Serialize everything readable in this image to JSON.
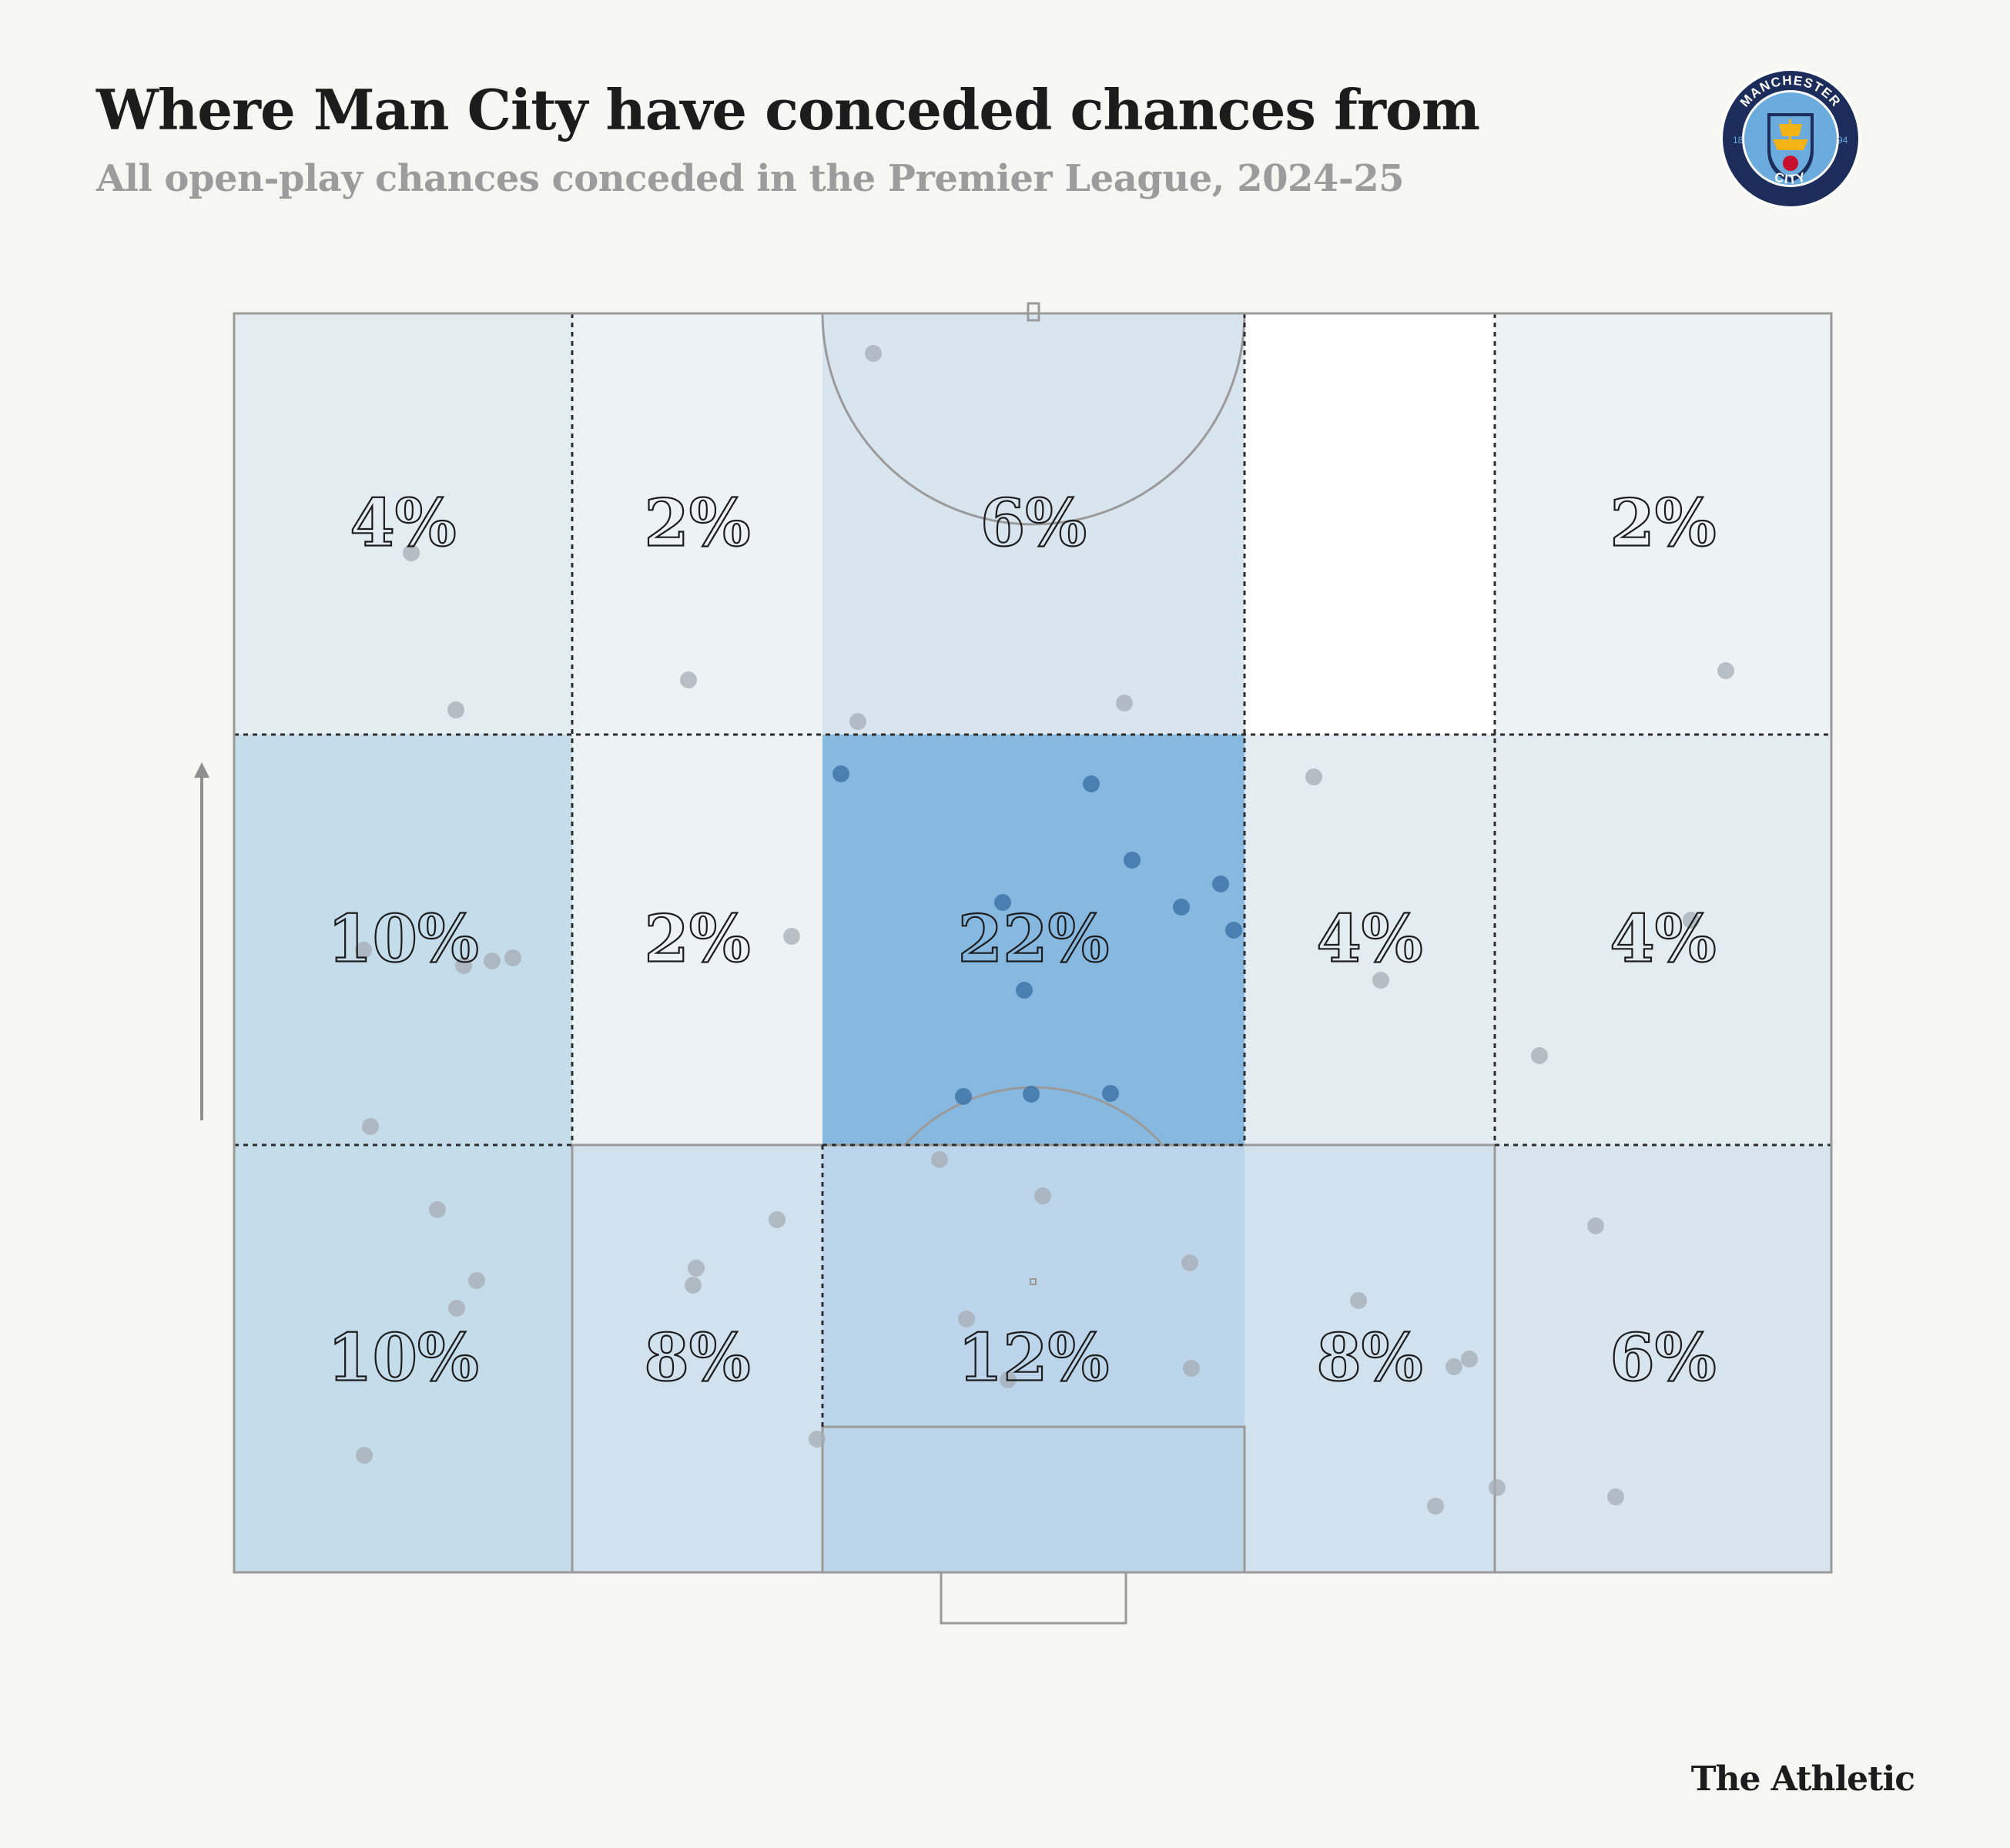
{
  "header": {
    "title": "Where Man City have conceded chances from",
    "subtitle": "All open-play chances conceded in the Premier League, 2024-25"
  },
  "crest": {
    "top_text": "MANCHESTER",
    "bottom_text": "CITY",
    "left_year": "18",
    "right_year": "94",
    "colors": {
      "blue": "#1c2c5b",
      "sky": "#6cabdd",
      "gold": "#f2b316",
      "red": "#c8102e"
    }
  },
  "brand": "The Athletic",
  "colors": {
    "background": "#f6f7f3",
    "heat_scale": [
      "#ffffff",
      "#86b8e0"
    ],
    "dot_light": "#a4acb4",
    "dot_dark": "#3f75a8"
  },
  "chart_data": {
    "type": "heatmap",
    "title": "Where Man City have conceded chances from",
    "subtitle": "All open-play chances conceded in the Premier League, 2024-25",
    "attack_direction": "up",
    "zones": [
      {
        "row": 0,
        "col": 0,
        "value": 4,
        "label": "4%"
      },
      {
        "row": 0,
        "col": 1,
        "value": 2,
        "label": "2%"
      },
      {
        "row": 0,
        "col": 2,
        "value": 6,
        "label": "6%"
      },
      {
        "row": 0,
        "col": 3,
        "value": 0,
        "label": ""
      },
      {
        "row": 0,
        "col": 4,
        "value": 2,
        "label": "2%"
      },
      {
        "row": 1,
        "col": 0,
        "value": 10,
        "label": "10%"
      },
      {
        "row": 1,
        "col": 1,
        "value": 2,
        "label": "2%"
      },
      {
        "row": 1,
        "col": 2,
        "value": 22,
        "label": "22%"
      },
      {
        "row": 1,
        "col": 3,
        "value": 4,
        "label": "4%"
      },
      {
        "row": 1,
        "col": 4,
        "value": 4,
        "label": "4%"
      },
      {
        "row": 2,
        "col": 0,
        "value": 10,
        "label": "10%"
      },
      {
        "row": 2,
        "col": 1,
        "value": 8,
        "label": "8%"
      },
      {
        "row": 2,
        "col": 2,
        "value": 12,
        "label": "12%"
      },
      {
        "row": 2,
        "col": 3,
        "value": 8,
        "label": "8%"
      },
      {
        "row": 2,
        "col": 4,
        "value": 6,
        "label": "6%"
      }
    ],
    "chances": [
      [
        1134,
        459,
        0
      ],
      [
        534,
        718,
        0
      ],
      [
        592,
        922,
        0
      ],
      [
        894,
        883,
        0
      ],
      [
        1114,
        937,
        0
      ],
      [
        1460,
        913,
        0
      ],
      [
        2241,
        871,
        0
      ],
      [
        1092,
        1005,
        1
      ],
      [
        1417,
        1018,
        1
      ],
      [
        1470,
        1117,
        1
      ],
      [
        1302,
        1172,
        1
      ],
      [
        1534,
        1178,
        1
      ],
      [
        1585,
        1148,
        1
      ],
      [
        1602,
        1208,
        1
      ],
      [
        1330,
        1286,
        1
      ],
      [
        1251,
        1424,
        1
      ],
      [
        1339,
        1421,
        1
      ],
      [
        1442,
        1420,
        1
      ],
      [
        1706,
        1009,
        0
      ],
      [
        2196,
        1195,
        0
      ],
      [
        1793,
        1273,
        0
      ],
      [
        1999,
        1371,
        0
      ],
      [
        1028,
        1216,
        0
      ],
      [
        472,
        1234,
        0
      ],
      [
        602,
        1254,
        0
      ],
      [
        639,
        1248,
        0
      ],
      [
        666,
        1244,
        0
      ],
      [
        481,
        1463,
        0
      ],
      [
        568,
        1571,
        0
      ],
      [
        619,
        1663,
        0
      ],
      [
        593,
        1699,
        0
      ],
      [
        473,
        1890,
        0
      ],
      [
        1220,
        1506,
        0
      ],
      [
        1354,
        1553,
        0
      ],
      [
        1009,
        1584,
        0
      ],
      [
        904,
        1647,
        0
      ],
      [
        900,
        1669,
        0
      ],
      [
        1255,
        1713,
        0
      ],
      [
        1309,
        1792,
        0
      ],
      [
        1545,
        1640,
        0
      ],
      [
        1547,
        1777,
        0
      ],
      [
        1061,
        1869,
        0
      ],
      [
        1764,
        1689,
        0
      ],
      [
        1888,
        1775,
        0
      ],
      [
        1908,
        1765,
        0
      ],
      [
        2072,
        1592,
        0
      ],
      [
        1944,
        1932,
        0
      ],
      [
        2098,
        1944,
        0
      ],
      [
        1864,
        1956,
        0
      ]
    ]
  }
}
